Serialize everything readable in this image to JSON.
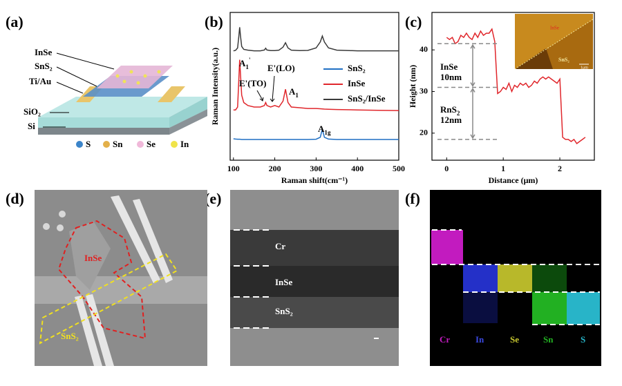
{
  "figure": {
    "panels": [
      "(a)",
      "(b)",
      "(c)",
      "(d)",
      "(e)",
      "(f)"
    ],
    "a": {
      "labels": [
        "InSe",
        "SnS₂",
        "Ti/Au",
        "SiO₂",
        "Si"
      ],
      "legend": [
        "S",
        "Sn",
        "Se",
        "In"
      ]
    },
    "c_inset": [
      "InSe",
      "SnS₂",
      "1μm"
    ],
    "d": {
      "labels": [
        "InSe",
        "SnS₂"
      ]
    },
    "e": {
      "labels": [
        "Cr",
        "InSe",
        "SnS₂"
      ]
    },
    "f": {
      "labels": [
        "Cr",
        "In",
        "Se",
        "Sn",
        "S"
      ]
    }
  },
  "chart_data": [
    {
      "type": "line",
      "xlabel": "Raman shift(cm⁻¹)",
      "ylabel": "Raman Intensity(a.u.)",
      "x": [
        100,
        105,
        110,
        113,
        115,
        117,
        120,
        125,
        135,
        150,
        165,
        175,
        178,
        181,
        190,
        200,
        210,
        220,
        226,
        232,
        240,
        260,
        280,
        300,
        310,
        315,
        320,
        330,
        350,
        400,
        450,
        500
      ],
      "xlim": [
        92,
        500
      ],
      "xticks": [
        100,
        200,
        300,
        400,
        500
      ],
      "ylim": [
        0,
        100
      ],
      "series": [
        {
          "name": "SnS₂",
          "color": "#1f6fc4",
          "values": [
            14.5,
            14.3,
            14.2,
            14.2,
            14.2,
            14.1,
            14,
            14,
            14,
            14,
            14,
            14,
            14,
            14,
            14,
            14,
            14,
            14,
            14,
            14,
            14,
            14,
            14,
            14.2,
            15.5,
            21,
            15.5,
            14.3,
            14,
            14,
            14,
            14
          ]
        },
        {
          "name": "InSe",
          "color": "#e0262b",
          "values": [
            34,
            34,
            36,
            55,
            68,
            58,
            44,
            39,
            37,
            36,
            36,
            37,
            39,
            37,
            36,
            37,
            36,
            40,
            48,
            39,
            36,
            35.5,
            35,
            35,
            34.8,
            34.7,
            34.6,
            34.5,
            34.3,
            34,
            33.8,
            33.6
          ]
        },
        {
          "name": "SnS₂/InSe",
          "color": "#3a3a3a",
          "values": [
            74,
            74.3,
            76,
            84,
            90,
            84,
            77,
            75,
            74.5,
            74,
            74,
            74.6,
            75.8,
            74.6,
            74.2,
            74.2,
            74.5,
            76.5,
            79.5,
            76,
            74.5,
            74.2,
            74.3,
            76,
            80,
            84,
            80,
            76,
            74.5,
            74,
            74,
            74
          ]
        }
      ],
      "annotations": [
        {
          "base": "A",
          "sub": "1",
          "sup": "'"
        },
        {
          "base": "E'(TO)"
        },
        {
          "base": "E'(LO)"
        },
        {
          "base": "A",
          "sub": "1"
        },
        {
          "base": "A",
          "sub": "1g"
        }
      ]
    },
    {
      "type": "line",
      "xlabel": "Distance (μm)",
      "ylabel": "Height (nm)",
      "x": [
        0,
        0.05,
        0.1,
        0.15,
        0.2,
        0.25,
        0.3,
        0.35,
        0.4,
        0.45,
        0.5,
        0.55,
        0.6,
        0.65,
        0.7,
        0.75,
        0.8,
        0.85,
        0.9,
        0.95,
        1.0,
        1.05,
        1.1,
        1.15,
        1.2,
        1.25,
        1.3,
        1.35,
        1.4,
        1.45,
        1.5,
        1.55,
        1.6,
        1.65,
        1.7,
        1.75,
        1.8,
        1.85,
        1.9,
        1.95,
        2.0,
        2.05,
        2.1,
        2.15,
        2.2,
        2.25,
        2.3,
        2.35,
        2.4,
        2.45
      ],
      "xlim": [
        -0.26,
        2.61
      ],
      "xticks": [
        0,
        1,
        2
      ],
      "ylim": [
        13.5,
        49
      ],
      "yticks": [
        20,
        30,
        40
      ],
      "series": [
        {
          "color": "#e0262b",
          "values": [
            43,
            42.5,
            43,
            41.5,
            42,
            43.5,
            43,
            44,
            43,
            42.5,
            44,
            43,
            44.5,
            43.5,
            44,
            44,
            45,
            42,
            29.5,
            30,
            31,
            30.5,
            32,
            30,
            31.5,
            31,
            32,
            31.5,
            32,
            31,
            31.5,
            32.5,
            32,
            33,
            33.5,
            33,
            33.5,
            33,
            32.5,
            32,
            33,
            19,
            18.5,
            18.5,
            18,
            18.5,
            17.5,
            18,
            18.5,
            19
          ]
        }
      ],
      "reference_lines": [
        41.5,
        31,
        18.5
      ],
      "annotations": [
        {
          "base": "InSe"
        },
        {
          "base": "10nm"
        },
        {
          "base": "RnS",
          "sub": "2"
        },
        {
          "base": "12nm"
        }
      ]
    }
  ]
}
